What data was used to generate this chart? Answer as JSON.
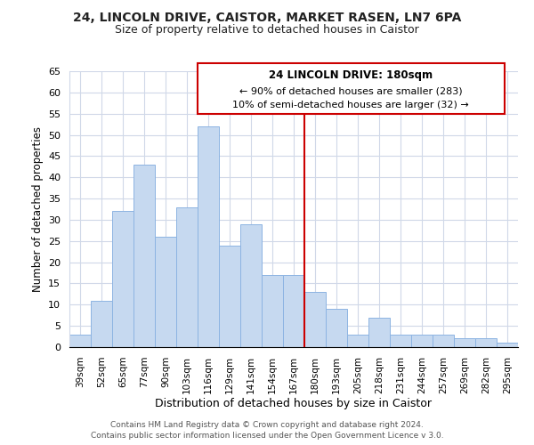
{
  "title1": "24, LINCOLN DRIVE, CAISTOR, MARKET RASEN, LN7 6PA",
  "title2": "Size of property relative to detached houses in Caistor",
  "xlabel": "Distribution of detached houses by size in Caistor",
  "ylabel": "Number of detached properties",
  "bin_labels": [
    "39sqm",
    "52sqm",
    "65sqm",
    "77sqm",
    "90sqm",
    "103sqm",
    "116sqm",
    "129sqm",
    "141sqm",
    "154sqm",
    "167sqm",
    "180sqm",
    "193sqm",
    "205sqm",
    "218sqm",
    "231sqm",
    "244sqm",
    "257sqm",
    "269sqm",
    "282sqm",
    "295sqm"
  ],
  "bar_heights": [
    3,
    11,
    32,
    43,
    26,
    33,
    52,
    24,
    29,
    17,
    17,
    13,
    9,
    3,
    7,
    3,
    3,
    3,
    2,
    2,
    1
  ],
  "bar_color": "#c6d9f0",
  "bar_edgecolor": "#8db4e2",
  "highlight_line_color": "#cc0000",
  "ylim": [
    0,
    65
  ],
  "yticks": [
    0,
    5,
    10,
    15,
    20,
    25,
    30,
    35,
    40,
    45,
    50,
    55,
    60,
    65
  ],
  "annotation_title": "24 LINCOLN DRIVE: 180sqm",
  "annotation_line1": "← 90% of detached houses are smaller (283)",
  "annotation_line2": "10% of semi-detached houses are larger (32) →",
  "footer1": "Contains HM Land Registry data © Crown copyright and database right 2024.",
  "footer2": "Contains public sector information licensed under the Open Government Licence v 3.0.",
  "background_color": "#ffffff",
  "grid_color": "#d0d8e8"
}
